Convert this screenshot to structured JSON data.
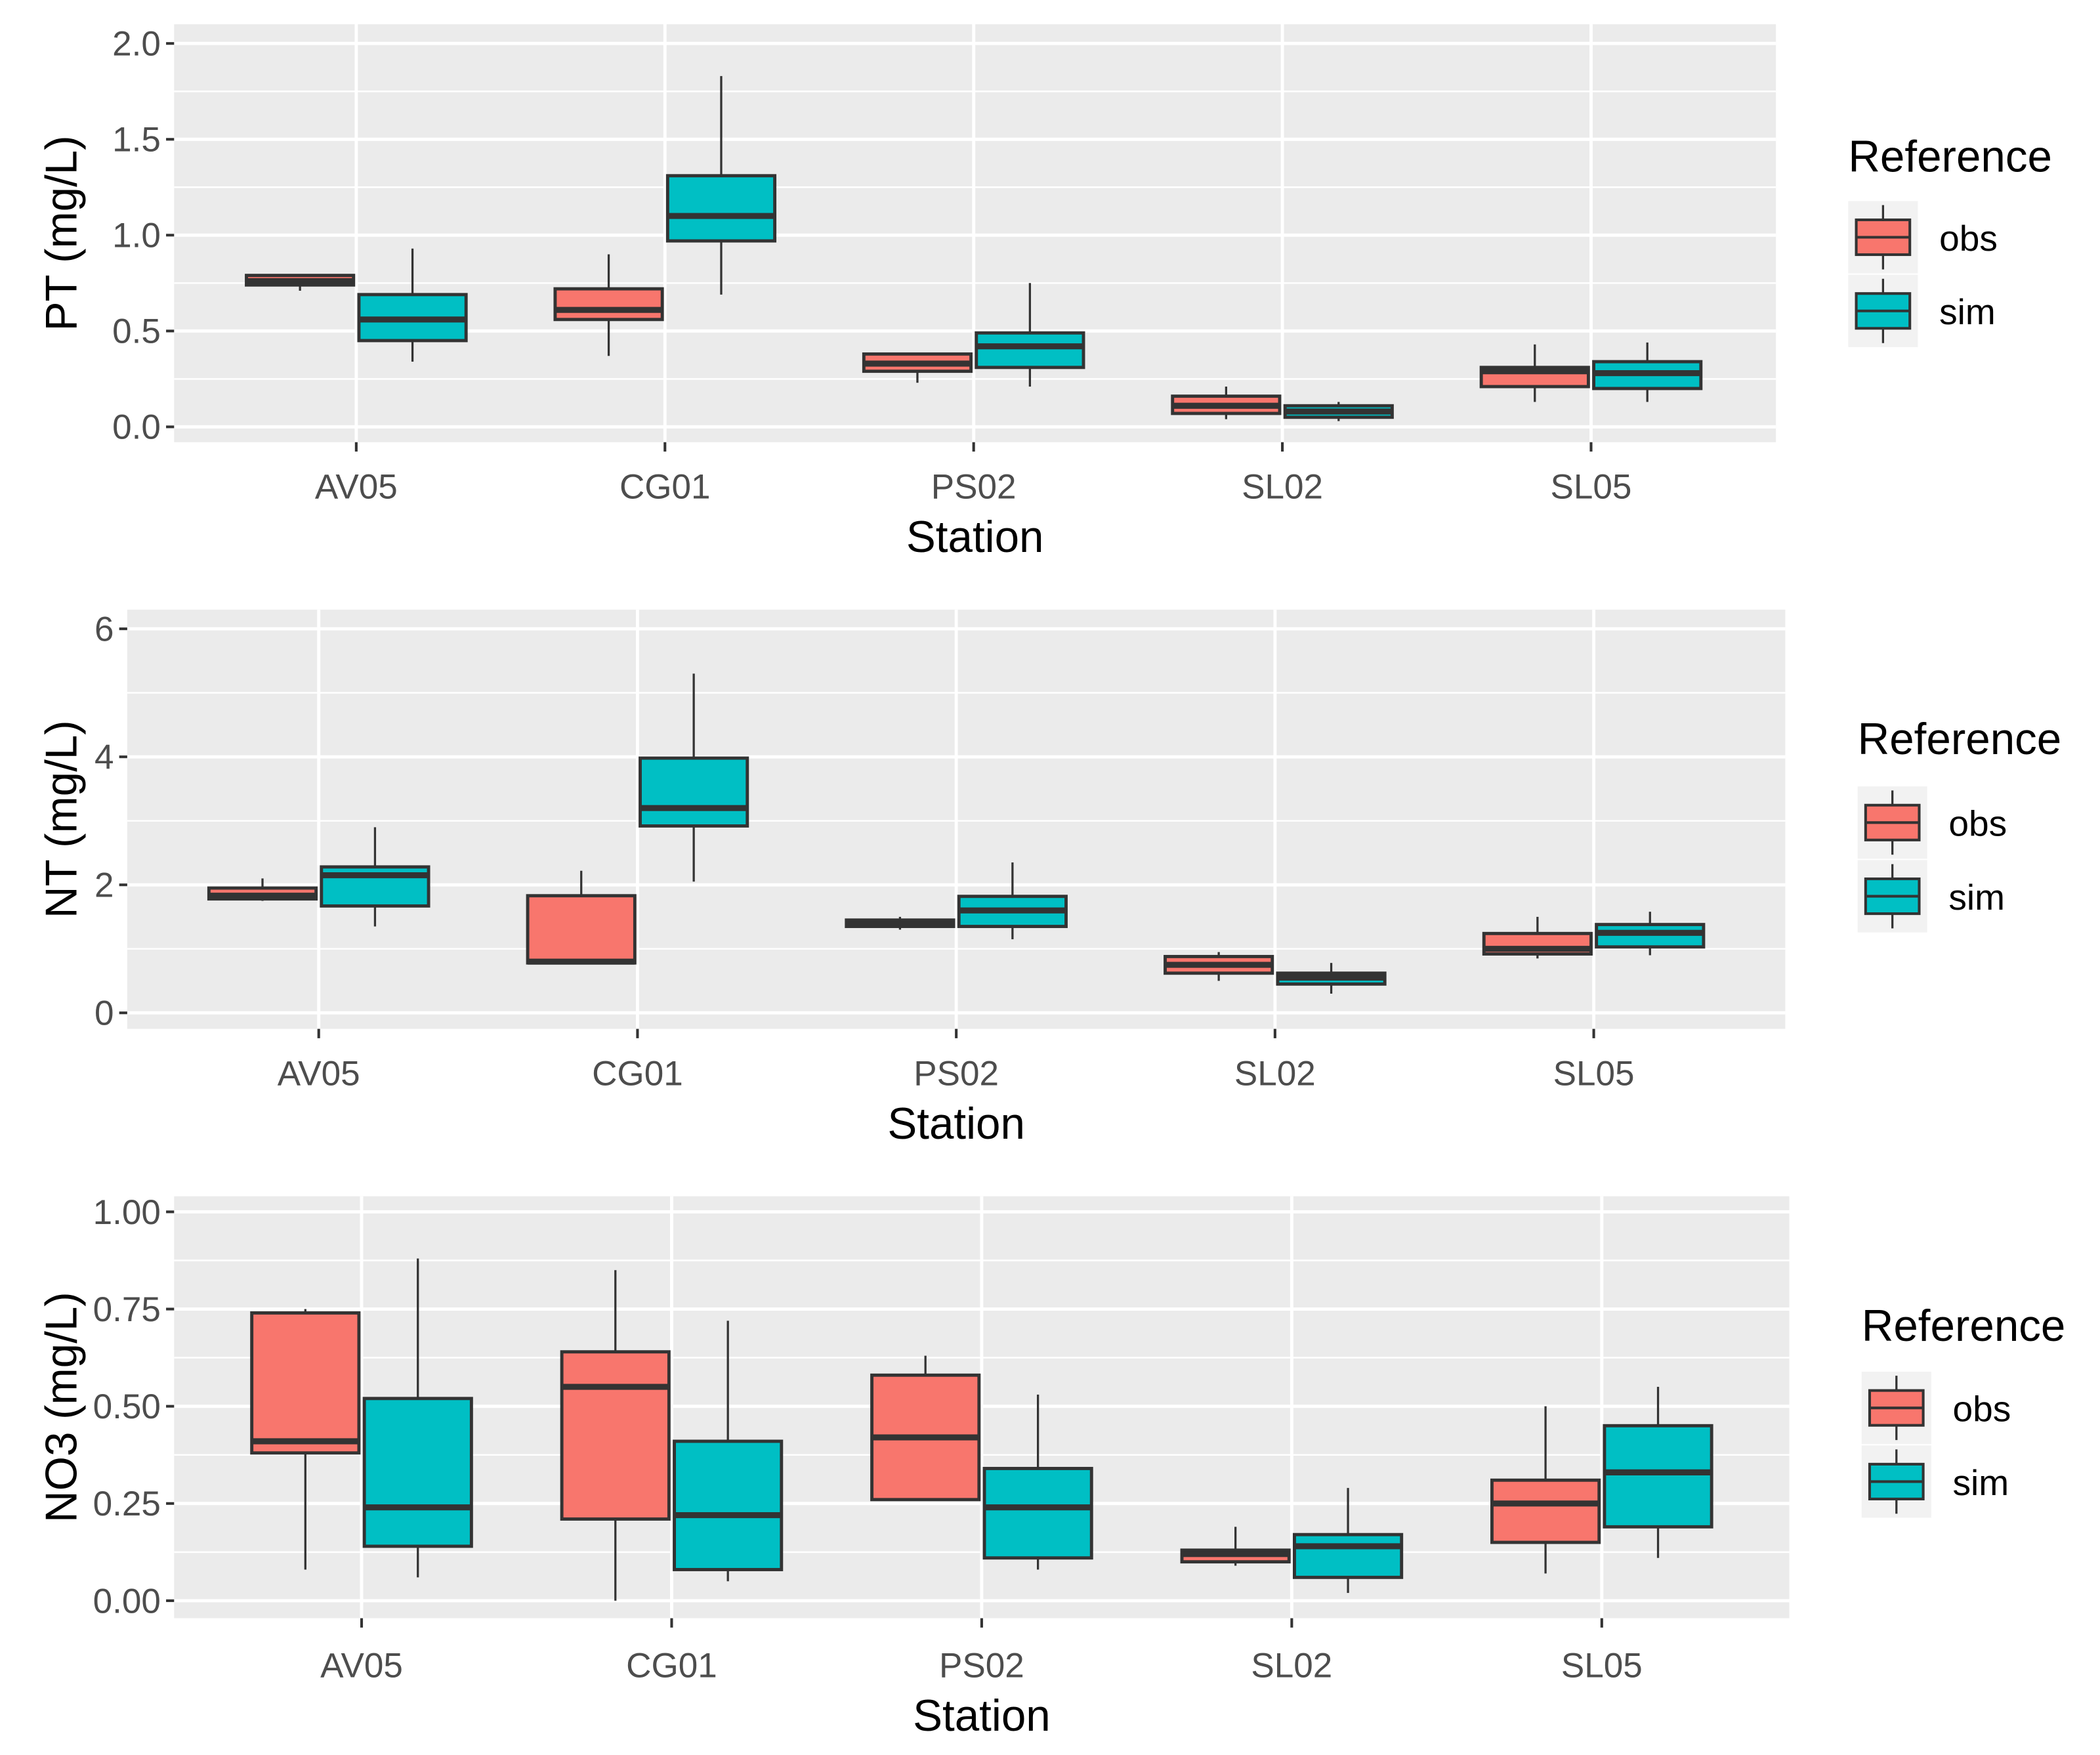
{
  "colors": {
    "obs": "#F8766D",
    "sim": "#00BFC4",
    "panel": "#EBEBEB",
    "grid": "#FFFFFF",
    "line": "#333333"
  },
  "chart_data": [
    {
      "type": "boxplot",
      "xlabel": "Station",
      "ylabel": "PT (mg/L)",
      "ylim": [
        -0.08,
        2.1
      ],
      "yticks": [
        0.0,
        0.5,
        1.0,
        1.5,
        2.0
      ],
      "ytick_labels": [
        "0.0",
        "0.5",
        "1.0",
        "1.5",
        "2.0"
      ],
      "categories": [
        "AV05",
        "CG01",
        "PS02",
        "SL02",
        "SL05"
      ],
      "legend": {
        "title": "Reference",
        "entries": [
          "obs",
          "sim"
        ],
        "placement": "right"
      },
      "series": [
        {
          "name": "obs",
          "boxes": [
            {
              "min": 0.71,
              "q1": 0.74,
              "median": 0.76,
              "q3": 0.79,
              "max": 0.79
            },
            {
              "min": 0.37,
              "q1": 0.56,
              "median": 0.61,
              "q3": 0.72,
              "max": 0.9
            },
            {
              "min": 0.23,
              "q1": 0.29,
              "median": 0.33,
              "q3": 0.38,
              "max": 0.38
            },
            {
              "min": 0.04,
              "q1": 0.07,
              "median": 0.11,
              "q3": 0.16,
              "max": 0.21
            },
            {
              "min": 0.13,
              "q1": 0.21,
              "median": 0.29,
              "q3": 0.31,
              "max": 0.43
            }
          ]
        },
        {
          "name": "sim",
          "boxes": [
            {
              "min": 0.34,
              "q1": 0.45,
              "median": 0.56,
              "q3": 0.69,
              "max": 0.93
            },
            {
              "min": 0.69,
              "q1": 0.97,
              "median": 1.1,
              "q3": 1.31,
              "max": 1.83
            },
            {
              "min": 0.21,
              "q1": 0.31,
              "median": 0.42,
              "q3": 0.49,
              "max": 0.75
            },
            {
              "min": 0.03,
              "q1": 0.05,
              "median": 0.08,
              "q3": 0.11,
              "max": 0.13
            },
            {
              "min": 0.13,
              "q1": 0.2,
              "median": 0.28,
              "q3": 0.34,
              "max": 0.44
            }
          ]
        }
      ]
    },
    {
      "type": "boxplot",
      "xlabel": "Station",
      "ylabel": "NT (mg/L)",
      "ylim": [
        -0.25,
        6.3
      ],
      "yticks": [
        0,
        2,
        4,
        6
      ],
      "ytick_labels": [
        "0",
        "2",
        "4",
        "6"
      ],
      "categories": [
        "AV05",
        "CG01",
        "PS02",
        "SL02",
        "SL05"
      ],
      "legend": {
        "title": "Reference",
        "entries": [
          "obs",
          "sim"
        ],
        "placement": "right"
      },
      "series": [
        {
          "name": "obs",
          "boxes": [
            {
              "min": 1.75,
              "q1": 1.78,
              "median": 1.83,
              "q3": 1.95,
              "max": 2.1
            },
            {
              "min": 0.78,
              "q1": 0.78,
              "median": 0.8,
              "q3": 1.83,
              "max": 2.22
            },
            {
              "min": 1.3,
              "q1": 1.35,
              "median": 1.38,
              "q3": 1.45,
              "max": 1.5
            },
            {
              "min": 0.5,
              "q1": 0.62,
              "median": 0.75,
              "q3": 0.88,
              "max": 0.95
            },
            {
              "min": 0.85,
              "q1": 0.92,
              "median": 1.0,
              "q3": 1.24,
              "max": 1.5
            }
          ]
        },
        {
          "name": "sim",
          "boxes": [
            {
              "min": 1.35,
              "q1": 1.67,
              "median": 2.15,
              "q3": 2.28,
              "max": 2.9
            },
            {
              "min": 2.05,
              "q1": 2.92,
              "median": 3.2,
              "q3": 3.98,
              "max": 5.3
            },
            {
              "min": 1.15,
              "q1": 1.35,
              "median": 1.6,
              "q3": 1.82,
              "max": 2.35
            },
            {
              "min": 0.3,
              "q1": 0.45,
              "median": 0.55,
              "q3": 0.62,
              "max": 0.78
            },
            {
              "min": 0.9,
              "q1": 1.03,
              "median": 1.25,
              "q3": 1.38,
              "max": 1.58
            }
          ]
        }
      ]
    },
    {
      "type": "boxplot",
      "xlabel": "Station",
      "ylabel": "NO3 (mg/L)",
      "ylim": [
        -0.045,
        1.04
      ],
      "yticks": [
        0.0,
        0.25,
        0.5,
        0.75,
        1.0
      ],
      "ytick_labels": [
        "0.00",
        "0.25",
        "0.50",
        "0.75",
        "1.00"
      ],
      "categories": [
        "AV05",
        "CG01",
        "PS02",
        "SL02",
        "SL05"
      ],
      "legend": {
        "title": "Reference",
        "entries": [
          "obs",
          "sim"
        ],
        "placement": "right"
      },
      "series": [
        {
          "name": "obs",
          "boxes": [
            {
              "min": 0.08,
              "q1": 0.38,
              "median": 0.41,
              "q3": 0.74,
              "max": 0.75
            },
            {
              "min": 0.0,
              "q1": 0.21,
              "median": 0.55,
              "q3": 0.64,
              "max": 0.85
            },
            {
              "min": 0.26,
              "q1": 0.26,
              "median": 0.42,
              "q3": 0.58,
              "max": 0.63
            },
            {
              "min": 0.09,
              "q1": 0.1,
              "median": 0.12,
              "q3": 0.13,
              "max": 0.19
            },
            {
              "min": 0.07,
              "q1": 0.15,
              "median": 0.25,
              "q3": 0.31,
              "max": 0.5
            }
          ]
        },
        {
          "name": "sim",
          "boxes": [
            {
              "min": 0.06,
              "q1": 0.14,
              "median": 0.24,
              "q3": 0.52,
              "max": 0.88
            },
            {
              "min": 0.05,
              "q1": 0.08,
              "median": 0.22,
              "q3": 0.41,
              "max": 0.72
            },
            {
              "min": 0.08,
              "q1": 0.11,
              "median": 0.24,
              "q3": 0.34,
              "max": 0.53
            },
            {
              "min": 0.02,
              "q1": 0.06,
              "median": 0.14,
              "q3": 0.17,
              "max": 0.29
            },
            {
              "min": 0.11,
              "q1": 0.19,
              "median": 0.33,
              "q3": 0.45,
              "max": 0.55
            }
          ]
        }
      ]
    }
  ]
}
